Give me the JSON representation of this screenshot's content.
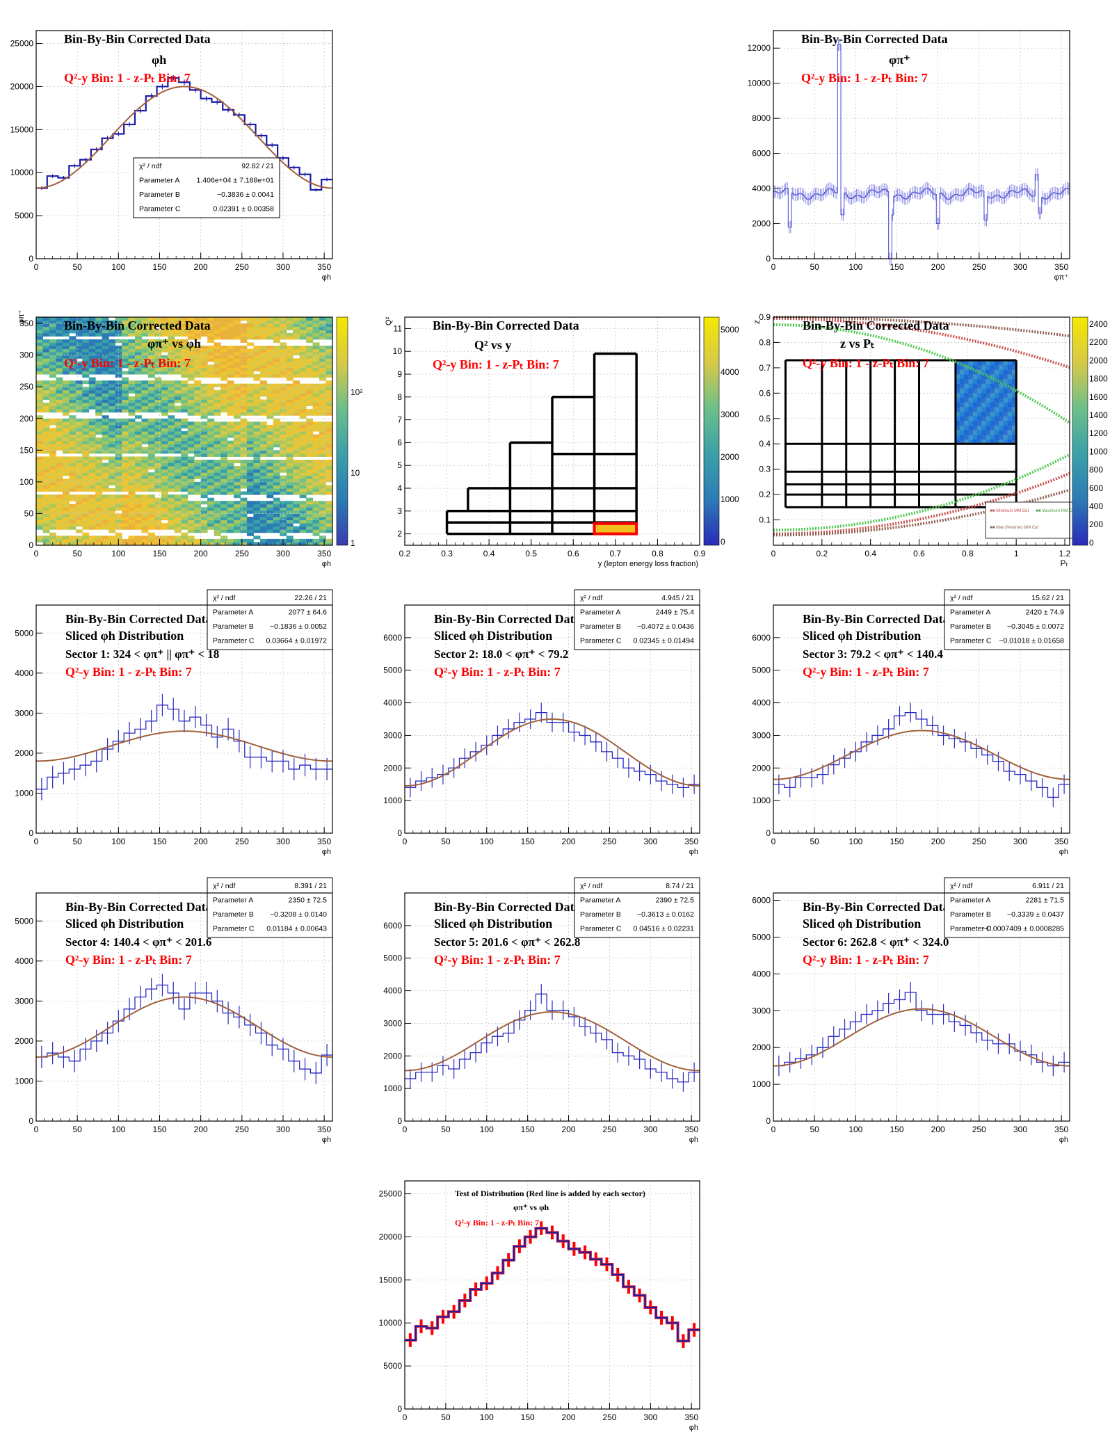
{
  "colors": {
    "hist": "#1a1aa8",
    "fit": "#a0603a",
    "red": "#ff0000",
    "frame": "#000000",
    "grid": "#c8c8c8"
  },
  "labels": {
    "corrected": "Bin-By-Bin Corrected Data",
    "q2y_bin": "Q²-y Bin: 1",
    "zpt_bin": "z-Pₜ Bin: 7",
    "sliced": "Sliced  φh Distribution",
    "phi_h": "φh",
    "phi_pi": "φπ⁺",
    "phi_pi_vs_phi_h": "φπ⁺ vs φh",
    "q2_vs_y": "Q² vs y",
    "z_vs_pt": "z vs Pₜ",
    "y_axis_label": "y (lepton energy loss fraction)",
    "q2_axis": "Q²",
    "z_axis": "z",
    "pt_axis": "Pₜ",
    "test_title": "Test of Distribution (Red line is added by each sector)",
    "legend_min_mm": "Minimum MM Cut",
    "legend_max_mm": "Maximum MM Cut",
    "legend_neutron": "Max (Neutron) MM Cut"
  },
  "panels": [
    {
      "id": "phi_h_full",
      "stats": [
        [
          "χ² / ndf",
          "92.82 / 21"
        ],
        [
          "Parameter A",
          "1.406e+04 ± 7.188e+01"
        ],
        [
          "Parameter B",
          "−0.3836 ± 0.0041"
        ],
        [
          "Parameter C",
          "0.02391 ± 0.00358"
        ]
      ]
    },
    {
      "id": "phi_pi_full"
    },
    {
      "id": "phi_pi_vs_phi_h",
      "colz": [
        "10²",
        "10",
        "1"
      ]
    },
    {
      "id": "q2_vs_y",
      "colz": [
        "5000",
        "4000",
        "3000",
        "2000",
        "1000",
        "0"
      ]
    },
    {
      "id": "z_vs_pt",
      "colz": [
        "2400",
        "2200",
        "2000",
        "1800",
        "1600",
        "1400",
        "1200",
        "1000",
        "800",
        "600",
        "400",
        "200",
        "0"
      ]
    },
    {
      "id": "sector1",
      "sector_text": "Sector 1:   324 <  φπ⁺ || φπ⁺ < 18",
      "stats": [
        [
          "χ² / ndf",
          "22.26 / 21"
        ],
        [
          "Parameter A",
          "2077 ± 64.6"
        ],
        [
          "Parameter B",
          "−0.1836 ± 0.0052"
        ],
        [
          "Parameter C",
          "0.03664 ± 0.01972"
        ]
      ]
    },
    {
      "id": "sector2",
      "sector_text": "Sector 2:   18.0 <  φπ⁺ < 79.2",
      "stats": [
        [
          "χ² / ndf",
          "4.945 / 21"
        ],
        [
          "Parameter A",
          "2449 ± 75.4"
        ],
        [
          "Parameter B",
          "−0.4072 ± 0.0436"
        ],
        [
          "Parameter C",
          "0.02345 ± 0.01494"
        ]
      ]
    },
    {
      "id": "sector3",
      "sector_text": "Sector 3:   79.2 <  φπ⁺ < 140.4",
      "stats": [
        [
          "χ² / ndf",
          "15.62 / 21"
        ],
        [
          "Parameter A",
          "2420 ± 74.9"
        ],
        [
          "Parameter B",
          "−0.3045 ± 0.0072"
        ],
        [
          "Parameter C",
          "−0.01018 ± 0.01658"
        ]
      ]
    },
    {
      "id": "sector4",
      "sector_text": "Sector 4:   140.4 <  φπ⁺ < 201.6",
      "stats": [
        [
          "χ² / ndf",
          "8.391 / 21"
        ],
        [
          "Parameter A",
          "2350 ± 72.5"
        ],
        [
          "Parameter B",
          "−0.3208 ± 0.0140"
        ],
        [
          "Parameter C",
          "0.01184 ± 0.00643"
        ]
      ]
    },
    {
      "id": "sector5",
      "sector_text": "Sector 5:   201.6 <  φπ⁺ < 262.8",
      "stats": [
        [
          "χ² / ndf",
          "8.74 / 21"
        ],
        [
          "Parameter A",
          "2390 ± 72.5"
        ],
        [
          "Parameter B",
          "−0.3613 ± 0.0162"
        ],
        [
          "Parameter C",
          "0.04516 ± 0.02231"
        ]
      ]
    },
    {
      "id": "sector6",
      "sector_text": "Sector 6:   262.8 <  φπ⁺ < 324.0",
      "stats": [
        [
          "χ² / ndf",
          "6.911 / 21"
        ],
        [
          "Parameter A",
          "2281 ± 71.5"
        ],
        [
          "Parameter B",
          "−0.3339 ± 0.0437"
        ],
        [
          "Parameter C",
          "−0.0007409 ± 0.0008285"
        ]
      ]
    },
    {
      "id": "test"
    }
  ],
  "chart_data": [
    {
      "type": "bar",
      "name_id": "phi_h_full",
      "title": "Bin-By-Bin Corrected Data",
      "xlabel": "φh",
      "xlim": [
        0,
        360
      ],
      "ylim": [
        0,
        26500
      ],
      "xticks": [
        0,
        50,
        100,
        150,
        200,
        250,
        300,
        350
      ],
      "yticks": [
        0,
        5000,
        10000,
        15000,
        20000,
        25000
      ],
      "values": [
        8200,
        9600,
        9400,
        10800,
        11500,
        12700,
        14000,
        14500,
        15600,
        17200,
        18900,
        20000,
        21000,
        20500,
        19600,
        18600,
        18200,
        17300,
        16700,
        15600,
        14300,
        13200,
        11700,
        10600,
        9800,
        8000,
        9200
      ],
      "fit": [
        8200,
        20000
      ]
    },
    {
      "type": "bar",
      "name_id": "phi_pi_full",
      "title": "Bin-By-Bin Corrected Data",
      "xlabel": "φπ⁺",
      "xlim": [
        0,
        360
      ],
      "ylim": [
        0,
        13000
      ],
      "xticks": [
        0,
        50,
        100,
        150,
        200,
        250,
        300,
        350
      ],
      "yticks": [
        0,
        2000,
        4000,
        6000,
        8000,
        10000,
        12000
      ],
      "bins": 180,
      "baseline": 3700,
      "spikes": [
        [
          20,
          1800
        ],
        [
          80,
          12200
        ],
        [
          84,
          2500
        ],
        [
          142,
          0
        ],
        [
          145,
          2500
        ],
        [
          200,
          2000
        ],
        [
          258,
          2200
        ],
        [
          320,
          4800
        ],
        [
          324,
          2600
        ]
      ]
    },
    {
      "type": "heatmap",
      "name_id": "phi_pi_vs_phi_h",
      "title": "Bin-By-Bin Corrected Data",
      "xlabel": "φh",
      "ylabel": "φπ⁺",
      "xlim": [
        0,
        360
      ],
      "ylim": [
        0,
        360
      ],
      "xticks": [
        0,
        50,
        100,
        150,
        200,
        250,
        300,
        350
      ],
      "yticks": [
        0,
        50,
        100,
        150,
        200,
        250,
        300,
        350
      ],
      "gap_centers": [
        18,
        79.2,
        140.4,
        201.6,
        262.8,
        324
      ],
      "scale": "log"
    },
    {
      "type": "heatmap",
      "name_id": "q2_vs_y",
      "title": "Bin-By-Bin Corrected Data",
      "xlabel": "y (lepton energy loss fraction)",
      "ylabel": "Q²",
      "xlim": [
        0.2,
        0.9
      ],
      "ylim": [
        1.5,
        11.5
      ],
      "xticks": [
        0.2,
        0.3,
        0.4,
        0.5,
        0.6,
        0.7,
        0.8,
        0.9
      ],
      "yticks": [
        2,
        3,
        4,
        5,
        6,
        7,
        8,
        9,
        10,
        11
      ],
      "bin_grid": [
        [
          0.3,
          2.0,
          0.75,
          2.5
        ],
        [
          0.3,
          2.5,
          0.75,
          3.0
        ],
        [
          0.35,
          3.0,
          0.75,
          4.0
        ],
        [
          0.45,
          4.0,
          0.75,
          6.0
        ],
        [
          0.55,
          5.5,
          0.75,
          8.0
        ],
        [
          0.65,
          6.0,
          0.75,
          9.9
        ]
      ],
      "highlight": [
        0.65,
        2.0,
        0.75,
        2.45
      ]
    },
    {
      "type": "heatmap",
      "name_id": "z_vs_pt",
      "title": "Bin-By-Bin Corrected Data",
      "xlabel": "Pₜ",
      "ylabel": "z",
      "xlim": [
        0,
        1.22
      ],
      "ylim": [
        0,
        0.9
      ],
      "xticks": [
        0,
        0.2,
        0.4,
        0.6,
        0.8,
        1,
        1.2
      ],
      "yticks": [
        0.1,
        0.2,
        0.3,
        0.4,
        0.5,
        0.6,
        0.7,
        0.8,
        0.9
      ],
      "pt_edges": [
        0.05,
        0.2,
        0.3,
        0.4,
        0.5,
        0.6,
        0.75,
        1.0
      ],
      "z_edges": [
        0.15,
        0.2,
        0.24,
        0.29,
        0.4,
        0.73
      ],
      "filled_bin": [
        0.75,
        0.4,
        1.0,
        0.73
      ]
    },
    {
      "type": "bar",
      "name_id": "sector1",
      "title": "Bin-By-Bin Corrected Data",
      "xlabel": "φh",
      "xlim": [
        0,
        360
      ],
      "ylim": [
        0,
        5700
      ],
      "xticks": [
        0,
        50,
        100,
        150,
        200,
        250,
        300,
        350
      ],
      "yticks": [
        0,
        1000,
        2000,
        3000,
        4000,
        5000
      ],
      "values": [
        1100,
        1400,
        1500,
        1600,
        1700,
        1800,
        2100,
        2300,
        2500,
        2600,
        2800,
        3200,
        3100,
        2800,
        2900,
        2700,
        2400,
        2600,
        2300,
        1900,
        1900,
        1800,
        1800,
        1600,
        1700,
        1600,
        1600
      ],
      "errors": 280,
      "fit": [
        1800,
        2550
      ]
    },
    {
      "type": "bar",
      "name_id": "sector2",
      "title": "Bin-By-Bin Corrected Data",
      "xlabel": "φh",
      "xlim": [
        0,
        360
      ],
      "ylim": [
        0,
        7000
      ],
      "xticks": [
        0,
        50,
        100,
        150,
        200,
        250,
        300,
        350
      ],
      "yticks": [
        0,
        1000,
        2000,
        3000,
        4000,
        5000,
        6000
      ],
      "values": [
        1400,
        1600,
        1700,
        1800,
        2000,
        2300,
        2500,
        2700,
        3000,
        3200,
        3400,
        3500,
        3700,
        3400,
        3400,
        3100,
        3000,
        2800,
        2500,
        2300,
        2000,
        1900,
        1800,
        1600,
        1500,
        1400,
        1500
      ],
      "errors": 300,
      "fit": [
        1450,
        3500
      ]
    },
    {
      "type": "bar",
      "name_id": "sector3",
      "title": "Bin-By-Bin Corrected Data",
      "xlabel": "φh",
      "xlim": [
        0,
        360
      ],
      "ylim": [
        0,
        7000
      ],
      "xticks": [
        0,
        50,
        100,
        150,
        200,
        250,
        300,
        350
      ],
      "yticks": [
        0,
        1000,
        2000,
        3000,
        4000,
        5000,
        6000
      ],
      "values": [
        1500,
        1400,
        1700,
        1700,
        1800,
        2100,
        2300,
        2500,
        2800,
        3000,
        3200,
        3600,
        3700,
        3500,
        3300,
        3000,
        2900,
        2800,
        2600,
        2400,
        2200,
        1900,
        1800,
        1600,
        1400,
        1100,
        1500
      ],
      "errors": 300,
      "fit": [
        1650,
        3150
      ]
    },
    {
      "type": "bar",
      "name_id": "sector4",
      "title": "Bin-By-Bin Corrected Data",
      "xlabel": "φh",
      "xlim": [
        0,
        360
      ],
      "ylim": [
        0,
        5700
      ],
      "xticks": [
        0,
        50,
        100,
        150,
        200,
        250,
        300,
        350
      ],
      "yticks": [
        0,
        1000,
        2000,
        3000,
        4000,
        5000
      ],
      "values": [
        1600,
        1700,
        1600,
        1500,
        1800,
        2000,
        2200,
        2500,
        2800,
        3100,
        3300,
        3400,
        3200,
        2800,
        3200,
        3200,
        3000,
        2700,
        2600,
        2400,
        2200,
        1900,
        1800,
        1500,
        1300,
        1200,
        1650
      ],
      "errors": 280,
      "fit": [
        1600,
        3100
      ]
    },
    {
      "type": "bar",
      "name_id": "sector5",
      "title": "Bin-By-Bin Corrected Data",
      "xlabel": "φh",
      "xlim": [
        0,
        360
      ],
      "ylim": [
        0,
        7000
      ],
      "xticks": [
        0,
        50,
        100,
        150,
        200,
        250,
        300,
        350
      ],
      "yticks": [
        0,
        1000,
        2000,
        3000,
        4000,
        5000,
        6000
      ],
      "values": [
        1300,
        1500,
        1500,
        1700,
        1600,
        1900,
        2100,
        2400,
        2600,
        2700,
        3100,
        3400,
        3900,
        3400,
        3400,
        3200,
        2900,
        2700,
        2500,
        2100,
        2000,
        1900,
        1600,
        1500,
        1300,
        1200,
        1500
      ],
      "errors": 300,
      "fit": [
        1550,
        3350
      ]
    },
    {
      "type": "bar",
      "name_id": "sector6",
      "title": "Bin-By-Bin Corrected Data",
      "xlabel": "φh",
      "xlim": [
        0,
        360
      ],
      "ylim": [
        0,
        6200
      ],
      "xticks": [
        0,
        50,
        100,
        150,
        200,
        250,
        300,
        350
      ],
      "yticks": [
        0,
        1000,
        2000,
        3000,
        4000,
        5000,
        6000
      ],
      "values": [
        1500,
        1600,
        1700,
        1800,
        2000,
        2300,
        2500,
        2700,
        2900,
        3000,
        3200,
        3300,
        3500,
        3000,
        2900,
        2900,
        2700,
        2600,
        2400,
        2200,
        2100,
        2100,
        1900,
        1800,
        1600,
        1500,
        1600
      ],
      "errors": 280,
      "fit": [
        1500,
        3050
      ]
    },
    {
      "type": "bar",
      "name_id": "test",
      "title": "Test of Distribution (Red line is added by each sector)",
      "xlabel": "φh",
      "xlim": [
        0,
        360
      ],
      "ylim": [
        0,
        26500
      ],
      "xticks": [
        0,
        50,
        100,
        150,
        200,
        250,
        300,
        350
      ],
      "yticks": [
        0,
        5000,
        10000,
        15000,
        20000,
        25000
      ],
      "values": [
        8000,
        9600,
        9400,
        10700,
        11300,
        12600,
        13900,
        14600,
        15800,
        17300,
        18900,
        20000,
        21000,
        20500,
        19500,
        18600,
        18200,
        17400,
        16800,
        15600,
        14200,
        13200,
        11800,
        10600,
        10000,
        7900,
        9200
      ]
    }
  ]
}
